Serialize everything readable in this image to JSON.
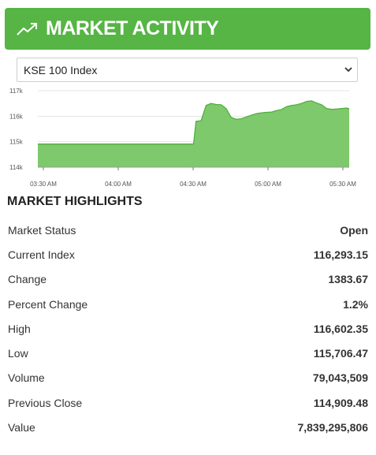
{
  "header": {
    "title": "MARKET ACTIVITY",
    "icon": "trending-up-icon"
  },
  "index_select": {
    "selected": "KSE 100 Index"
  },
  "chart_data": {
    "type": "area",
    "ylim": [
      114000,
      117000
    ],
    "y_ticks": [
      "114k",
      "115k",
      "116k",
      "117k"
    ],
    "x_ticks": [
      "03:30 AM",
      "04:00 AM",
      "04:30 AM",
      "05:00 AM",
      "05:30 AM"
    ],
    "color": "#7ec96b",
    "line_color": "#4cae3a",
    "series": [
      {
        "values": [
          [
            0,
            114909
          ],
          [
            62,
            114909
          ],
          [
            63,
            115800
          ],
          [
            65,
            115820
          ],
          [
            67,
            116420
          ],
          [
            69,
            116500
          ],
          [
            71,
            116460
          ],
          [
            73,
            116450
          ],
          [
            75,
            116300
          ],
          [
            77,
            115950
          ],
          [
            79,
            115880
          ],
          [
            81,
            115900
          ],
          [
            83,
            115970
          ],
          [
            85,
            116040
          ],
          [
            87,
            116100
          ],
          [
            89,
            116130
          ],
          [
            91,
            116150
          ],
          [
            93,
            116160
          ],
          [
            95,
            116220
          ],
          [
            97,
            116260
          ],
          [
            99,
            116370
          ],
          [
            101,
            116420
          ],
          [
            103,
            116450
          ],
          [
            105,
            116500
          ],
          [
            107,
            116580
          ],
          [
            109,
            116602
          ],
          [
            111,
            116520
          ],
          [
            113,
            116450
          ],
          [
            115,
            116300
          ],
          [
            117,
            116270
          ],
          [
            119,
            116280
          ],
          [
            121,
            116300
          ],
          [
            123,
            116320
          ],
          [
            124,
            116293
          ]
        ]
      }
    ]
  },
  "highlights": {
    "title": "MARKET HIGHLIGHTS",
    "rows": [
      {
        "label": "Market Status",
        "value": "Open"
      },
      {
        "label": "Current Index",
        "value": "116,293.15"
      },
      {
        "label": "Change",
        "value": "1383.67"
      },
      {
        "label": "Percent Change",
        "value": "1.2%"
      },
      {
        "label": "High",
        "value": "116,602.35"
      },
      {
        "label": "Low",
        "value": "115,706.47"
      },
      {
        "label": "Volume",
        "value": "79,043,509"
      },
      {
        "label": "Previous Close",
        "value": "114,909.48"
      },
      {
        "label": "Value",
        "value": "7,839,295,806"
      }
    ]
  }
}
